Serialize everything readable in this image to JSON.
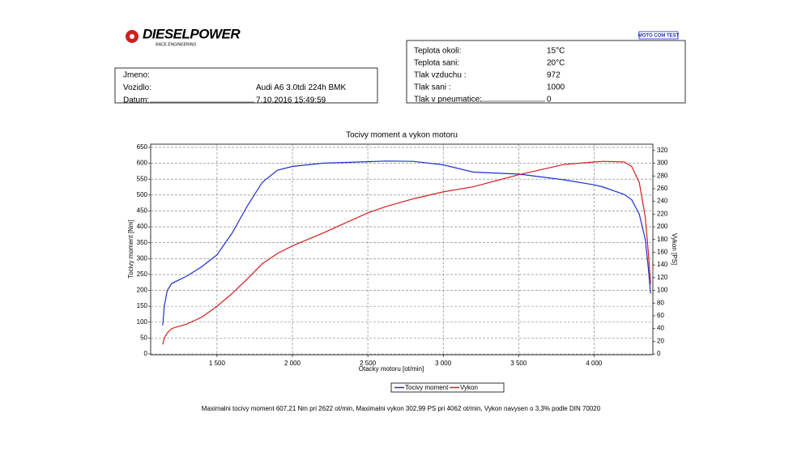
{
  "header": {
    "logo": "DIESELPOWER",
    "logo_sub": "RACE ENGINEERING",
    "brand": "MOTO COM TEST"
  },
  "vehicle": {
    "rows": [
      [
        "Jmeno:",
        ""
      ],
      [
        "Vozidlo:",
        "Audi A6 3.0tdi 224h BMK"
      ],
      [
        "Datum:",
        "7.10.2016 15:49:59"
      ]
    ]
  },
  "conditions": {
    "rows": [
      [
        "Teplota okoli:",
        "15°C"
      ],
      [
        "Teplota sani:",
        "20°C"
      ],
      [
        "Tlak vzduchu :",
        "972"
      ],
      [
        "Tlak sani :",
        "1000"
      ],
      [
        "Tlak v pneumatice:",
        "0"
      ]
    ]
  },
  "chart_data": {
    "type": "line",
    "title": "Tocivy moment a vykon motoru",
    "x_label": "Otacky motoru [ot/min]",
    "y_label": "Tocivy moment [Nm]",
    "y2_label": "Vykon [PS]",
    "x": [
      1140,
      1150,
      1170,
      1200,
      1300,
      1400,
      1500,
      1600,
      1700,
      1800,
      1900,
      2000,
      2200,
      2500,
      2622,
      2800,
      3000,
      3200,
      3500,
      3800,
      4000,
      4062,
      4200,
      4250,
      4300,
      4340,
      4360,
      4375
    ],
    "series": [
      {
        "name": "Tocivy moment",
        "color": "#1f2fd0",
        "values": [
          90,
          150,
          200,
          222,
          245,
          275,
          312,
          380,
          465,
          540,
          578,
          590,
          600,
          605,
          607,
          606,
          595,
          572,
          566,
          548,
          532,
          525,
          502,
          485,
          440,
          360,
          270,
          190
        ]
      },
      {
        "name": "Vykon",
        "color": "#d01f1f",
        "axis": "y2",
        "values": [
          15,
          25,
          33,
          40,
          47,
          58,
          75,
          95,
          118,
          142,
          158,
          170,
          190,
          222,
          232,
          244,
          255,
          263,
          282,
          298,
          302,
          303,
          302,
          295,
          270,
          215,
          160,
          110
        ]
      }
    ],
    "xlim": [
      1060,
      4390
    ],
    "xticks": [
      {
        "value": 1500,
        "label": "1 500"
      },
      {
        "value": 2000,
        "label": "2 000"
      },
      {
        "value": 2500,
        "label": "2 500"
      },
      {
        "value": 3000,
        "label": "3 000"
      },
      {
        "value": 3500,
        "label": "3 500"
      },
      {
        "value": 4000,
        "label": "4 000"
      }
    ],
    "ylim": [
      0,
      660
    ],
    "yticks": [
      0,
      50,
      100,
      150,
      200,
      250,
      300,
      350,
      400,
      450,
      500,
      550,
      600,
      650
    ],
    "y2lim": [
      0,
      330
    ],
    "y2ticks": [
      0,
      20,
      40,
      60,
      80,
      100,
      120,
      140,
      160,
      180,
      200,
      220,
      240,
      260,
      280,
      300,
      320
    ],
    "grid": true,
    "legend": "bottom",
    "footnote": "Maximalni tocivy moment 607,21 Nm pri 2622 ot/min,  Maximalni vykon 302,99 PS pri 4062 ot/min,  Vykon navysen o 3,3% podle DIN 70020"
  }
}
